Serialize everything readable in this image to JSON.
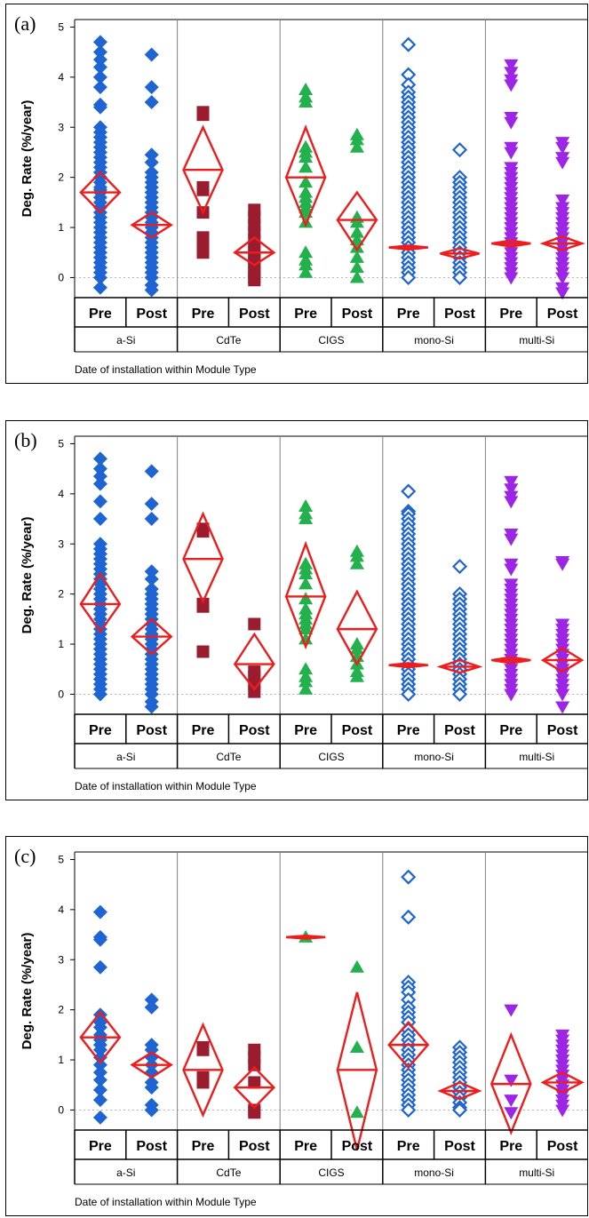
{
  "chart_data": [
    {
      "type": "scatter",
      "panel_label": "(a)",
      "ylabel": "Deg. Rate (%/year)",
      "xlabel": "Date of installation within Module Type",
      "yticks": [
        0,
        1,
        2,
        3,
        4,
        5
      ],
      "ylim": [
        -0.4,
        5.15
      ],
      "grid": false,
      "reference_line_y": 0,
      "module_types": [
        "a-Si",
        "CdTe",
        "CIGS",
        "mono-Si",
        "multi-Si"
      ],
      "periods": [
        "Pre",
        "Post"
      ],
      "groups": [
        {
          "module": "a-Si",
          "period": "Pre",
          "marker": "diamond",
          "color": "#1e64d2",
          "mean": 1.7,
          "ci": [
            1.3,
            2.1
          ],
          "values": [
            4.7,
            4.5,
            4.35,
            4.2,
            4.0,
            3.8,
            3.45,
            3.4,
            3.0,
            2.9,
            2.8,
            2.7,
            2.6,
            2.5,
            2.4,
            2.3,
            2.2,
            2.1,
            2.0,
            1.9,
            1.8,
            1.75,
            1.7,
            1.6,
            1.5,
            1.4,
            1.3,
            1.2,
            1.1,
            1.0,
            0.9,
            0.8,
            0.7,
            0.6,
            0.5,
            0.4,
            0.3,
            0.2,
            0.1,
            0.0,
            -0.2
          ]
        },
        {
          "module": "a-Si",
          "period": "Post",
          "marker": "diamond",
          "color": "#1e64d2",
          "mean": 1.05,
          "ci": [
            0.8,
            1.3
          ],
          "values": [
            4.45,
            3.8,
            3.5,
            2.45,
            2.3,
            2.1,
            2.0,
            1.9,
            1.8,
            1.7,
            1.6,
            1.5,
            1.4,
            1.3,
            1.2,
            1.1,
            1.0,
            0.9,
            0.8,
            0.7,
            0.6,
            0.5,
            0.4,
            0.3,
            0.2,
            0.1,
            0.0,
            -0.15,
            -0.25
          ]
        },
        {
          "module": "CdTe",
          "period": "Pre",
          "marker": "square",
          "color": "#9b1c2e",
          "mean": 2.15,
          "ci": [
            1.3,
            3.0
          ],
          "values": [
            3.3,
            3.25,
            1.8,
            1.75,
            1.3,
            0.8,
            0.6,
            0.5
          ]
        },
        {
          "module": "CdTe",
          "period": "Post",
          "marker": "square",
          "color": "#9b1c2e",
          "mean": 0.5,
          "ci": [
            0.25,
            0.8
          ],
          "values": [
            1.35,
            1.2,
            1.05,
            0.9,
            0.75,
            0.6,
            0.5,
            0.4,
            0.3,
            0.2,
            0.1,
            0.0,
            -0.05
          ]
        },
        {
          "module": "CIGS",
          "period": "Pre",
          "marker": "triangle-up",
          "color": "#22b14c",
          "mean": 2.0,
          "ci": [
            1.05,
            3.0
          ],
          "values": [
            3.75,
            3.6,
            3.5,
            2.6,
            2.5,
            2.4,
            2.2,
            1.9,
            1.7,
            1.6,
            1.5,
            1.4,
            1.3,
            1.1,
            0.5,
            0.35,
            0.25,
            0.1
          ]
        },
        {
          "module": "CIGS",
          "period": "Post",
          "marker": "triangle-up",
          "color": "#22b14c",
          "mean": 1.15,
          "ci": [
            0.55,
            1.7
          ],
          "values": [
            2.85,
            2.75,
            2.6,
            1.2,
            1.1,
            0.9,
            0.75,
            0.6,
            0.4,
            0.2,
            0.0
          ]
        },
        {
          "module": "mono-Si",
          "period": "Pre",
          "marker": "open-diamond",
          "color": "#1e64d2",
          "mean": 0.6,
          "ci": [
            0.56,
            0.64
          ],
          "values": [
            4.65,
            4.05,
            3.85,
            3.7,
            3.6,
            3.5,
            3.4,
            3.3,
            3.2,
            3.1,
            3.0,
            2.9,
            2.8,
            2.7,
            2.6,
            2.5,
            2.4,
            2.3,
            2.2,
            2.1,
            2.0,
            1.9,
            1.8,
            1.7,
            1.6,
            1.5,
            1.4,
            1.3,
            1.2,
            1.1,
            1.0,
            0.9,
            0.8,
            0.7,
            0.6,
            0.5,
            0.4,
            0.3,
            0.2,
            0.1,
            0.0
          ]
        },
        {
          "module": "mono-Si",
          "period": "Post",
          "marker": "open-diamond",
          "color": "#1e64d2",
          "mean": 0.48,
          "ci": [
            0.38,
            0.58
          ],
          "values": [
            2.55,
            2.0,
            1.9,
            1.8,
            1.7,
            1.6,
            1.5,
            1.4,
            1.3,
            1.2,
            1.1,
            1.0,
            0.9,
            0.8,
            0.7,
            0.6,
            0.5,
            0.4,
            0.3,
            0.2,
            0.1,
            0.0
          ]
        },
        {
          "module": "multi-Si",
          "period": "Pre",
          "marker": "triangle-down",
          "color": "#9d26e6",
          "mean": 0.68,
          "ci": [
            0.62,
            0.74
          ],
          "values": [
            4.25,
            4.1,
            3.95,
            3.85,
            3.2,
            3.1,
            2.6,
            2.5,
            2.2,
            2.1,
            2.0,
            1.9,
            1.8,
            1.7,
            1.6,
            1.5,
            1.4,
            1.3,
            1.2,
            1.1,
            1.0,
            0.9,
            0.8,
            0.7,
            0.6,
            0.5,
            0.4,
            0.3,
            0.2,
            0.1,
            0.0
          ]
        },
        {
          "module": "multi-Si",
          "period": "Post",
          "marker": "triangle-down",
          "color": "#9d26e6",
          "mean": 0.68,
          "ci": [
            0.55,
            0.82
          ],
          "values": [
            2.7,
            2.6,
            2.4,
            2.3,
            1.55,
            1.4,
            1.3,
            1.2,
            1.1,
            1.0,
            0.9,
            0.8,
            0.7,
            0.6,
            0.5,
            0.4,
            0.3,
            0.2,
            0.1,
            0.0,
            -0.2,
            -0.3
          ]
        }
      ]
    },
    {
      "type": "scatter",
      "panel_label": "(b)",
      "ylabel": "Deg. Rate (%/year)",
      "xlabel": "Date of installation within Module Type",
      "yticks": [
        0,
        1,
        2,
        3,
        4,
        5
      ],
      "ylim": [
        -0.4,
        5.15
      ],
      "grid": false,
      "reference_line_y": 0,
      "module_types": [
        "a-Si",
        "CdTe",
        "CIGS",
        "mono-Si",
        "multi-Si"
      ],
      "periods": [
        "Pre",
        "Post"
      ],
      "groups": [
        {
          "module": "a-Si",
          "period": "Pre",
          "marker": "diamond",
          "color": "#1e64d2",
          "mean": 1.8,
          "ci": [
            1.25,
            2.4
          ],
          "values": [
            4.7,
            4.5,
            4.35,
            4.2,
            3.85,
            3.5,
            3.0,
            2.9,
            2.8,
            2.7,
            2.6,
            2.5,
            2.4,
            2.3,
            2.2,
            2.1,
            2.0,
            1.9,
            1.8,
            1.7,
            1.6,
            1.5,
            1.4,
            1.3,
            1.2,
            1.1,
            1.0,
            0.9,
            0.8,
            0.7,
            0.6,
            0.5,
            0.4,
            0.3,
            0.2,
            0.1,
            0.0
          ]
        },
        {
          "module": "a-Si",
          "period": "Post",
          "marker": "diamond",
          "color": "#1e64d2",
          "mean": 1.15,
          "ci": [
            0.8,
            1.5
          ],
          "values": [
            4.45,
            3.8,
            3.5,
            2.45,
            2.3,
            2.1,
            2.0,
            1.9,
            1.8,
            1.7,
            1.6,
            1.5,
            1.4,
            1.3,
            1.2,
            1.1,
            1.0,
            0.9,
            0.8,
            0.7,
            0.6,
            0.5,
            0.4,
            0.3,
            0.2,
            0.1,
            0.0,
            -0.15,
            -0.25
          ]
        },
        {
          "module": "CdTe",
          "period": "Pre",
          "marker": "square",
          "color": "#9b1c2e",
          "mean": 2.7,
          "ci": [
            1.85,
            3.6
          ],
          "values": [
            3.3,
            3.25,
            1.8,
            1.75,
            0.85
          ]
        },
        {
          "module": "CdTe",
          "period": "Post",
          "marker": "square",
          "color": "#9b1c2e",
          "mean": 0.6,
          "ci": [
            0.1,
            1.2
          ],
          "values": [
            1.4,
            0.45,
            0.35,
            0.2,
            0.05
          ]
        },
        {
          "module": "CIGS",
          "period": "Pre",
          "marker": "triangle-up",
          "color": "#22b14c",
          "mean": 1.95,
          "ci": [
            0.95,
            3.0
          ],
          "values": [
            3.75,
            3.6,
            3.5,
            2.6,
            2.5,
            2.4,
            2.2,
            1.9,
            1.7,
            1.6,
            1.5,
            1.4,
            1.3,
            1.1,
            0.5,
            0.35,
            0.25,
            0.1
          ]
        },
        {
          "module": "CIGS",
          "period": "Post",
          "marker": "triangle-up",
          "color": "#22b14c",
          "mean": 1.3,
          "ci": [
            0.6,
            2.05
          ],
          "values": [
            2.85,
            2.75,
            2.6,
            1.0,
            0.9,
            0.75,
            0.6,
            0.45,
            0.35
          ]
        },
        {
          "module": "mono-Si",
          "period": "Pre",
          "marker": "open-diamond",
          "color": "#1e64d2",
          "mean": 0.58,
          "ci": [
            0.54,
            0.62
          ],
          "values": [
            4.05,
            3.65,
            3.6,
            3.5,
            3.4,
            3.3,
            3.2,
            3.1,
            3.0,
            2.9,
            2.8,
            2.7,
            2.6,
            2.5,
            2.4,
            2.3,
            2.2,
            2.1,
            2.0,
            1.9,
            1.8,
            1.7,
            1.6,
            1.5,
            1.4,
            1.3,
            1.2,
            1.1,
            1.0,
            0.9,
            0.8,
            0.7,
            0.6,
            0.5,
            0.4,
            0.3,
            0.2,
            0.1,
            0.0
          ]
        },
        {
          "module": "mono-Si",
          "period": "Post",
          "marker": "open-diamond",
          "color": "#1e64d2",
          "mean": 0.55,
          "ci": [
            0.43,
            0.68
          ],
          "values": [
            2.55,
            2.0,
            1.9,
            1.8,
            1.7,
            1.6,
            1.5,
            1.4,
            1.3,
            1.2,
            1.1,
            1.0,
            0.9,
            0.8,
            0.7,
            0.6,
            0.5,
            0.4,
            0.3,
            0.2,
            0.1,
            0.0
          ]
        },
        {
          "module": "multi-Si",
          "period": "Pre",
          "marker": "triangle-down",
          "color": "#9d26e6",
          "mean": 0.68,
          "ci": [
            0.62,
            0.74
          ],
          "values": [
            4.25,
            4.1,
            3.95,
            3.85,
            3.2,
            3.1,
            2.6,
            2.5,
            2.2,
            2.1,
            2.0,
            1.9,
            1.8,
            1.7,
            1.6,
            1.5,
            1.4,
            1.3,
            1.2,
            1.1,
            1.0,
            0.9,
            0.8,
            0.7,
            0.6,
            0.5,
            0.4,
            0.3,
            0.2,
            0.1,
            0.0
          ]
        },
        {
          "module": "multi-Si",
          "period": "Post",
          "marker": "triangle-down",
          "color": "#9d26e6",
          "mean": 0.68,
          "ci": [
            0.45,
            0.92
          ],
          "values": [
            2.65,
            2.6,
            1.4,
            1.3,
            1.2,
            1.1,
            1.0,
            0.9,
            0.8,
            0.7,
            0.6,
            0.5,
            0.4,
            0.3,
            0.2,
            0.1,
            0.0,
            -0.25
          ]
        }
      ]
    },
    {
      "type": "scatter",
      "panel_label": "(c)",
      "ylabel": "Deg. Rate (%/year)",
      "xlabel": "Date of installation within Module Type",
      "yticks": [
        0,
        1,
        2,
        3,
        4,
        5
      ],
      "ylim": [
        -0.4,
        5.15
      ],
      "grid": false,
      "reference_line_y": 0,
      "module_types": [
        "a-Si",
        "CdTe",
        "CIGS",
        "mono-Si",
        "multi-Si"
      ],
      "periods": [
        "Pre",
        "Post"
      ],
      "groups": [
        {
          "module": "a-Si",
          "period": "Pre",
          "marker": "diamond",
          "color": "#1e64d2",
          "mean": 1.45,
          "ci": [
            0.95,
            1.95
          ],
          "values": [
            3.95,
            3.45,
            3.4,
            2.85,
            1.9,
            1.75,
            1.65,
            1.5,
            1.4,
            1.3,
            1.2,
            1.05,
            0.9,
            0.75,
            0.6,
            0.4,
            0.2,
            -0.15
          ]
        },
        {
          "module": "a-Si",
          "period": "Post",
          "marker": "diamond",
          "color": "#1e64d2",
          "mean": 0.9,
          "ci": [
            0.65,
            1.15
          ],
          "values": [
            2.2,
            2.05,
            1.3,
            1.2,
            1.05,
            0.9,
            0.75,
            0.55,
            0.45,
            0.1,
            0.0
          ]
        },
        {
          "module": "CdTe",
          "period": "Pre",
          "marker": "square",
          "color": "#9b1c2e",
          "mean": 0.8,
          "ci": [
            -0.1,
            1.7
          ],
          "values": [
            1.25,
            1.2,
            0.65,
            0.55
          ]
        },
        {
          "module": "CdTe",
          "period": "Post",
          "marker": "square",
          "color": "#9b1c2e",
          "mean": 0.45,
          "ci": [
            0.05,
            0.85
          ],
          "values": [
            1.2,
            1.05,
            0.9,
            0.55,
            0.0,
            -0.05
          ]
        },
        {
          "module": "CIGS",
          "period": "Pre",
          "marker": "triangle-up",
          "color": "#22b14c",
          "mean": 3.45,
          "ci": [
            3.42,
            3.48
          ],
          "values": [
            3.45
          ]
        },
        {
          "module": "CIGS",
          "period": "Post",
          "marker": "triangle-up",
          "color": "#22b14c",
          "mean": 0.8,
          "ci": [
            -0.8,
            2.35
          ],
          "values": [
            2.85,
            1.25,
            -0.05
          ]
        },
        {
          "module": "mono-Si",
          "period": "Pre",
          "marker": "open-diamond",
          "color": "#1e64d2",
          "mean": 1.3,
          "ci": [
            0.85,
            1.75
          ],
          "values": [
            4.65,
            3.85,
            2.55,
            2.45,
            2.35,
            2.2,
            2.05,
            1.95,
            1.85,
            1.75,
            1.6,
            1.5,
            1.4,
            1.3,
            1.2,
            1.1,
            1.0,
            0.9,
            0.8,
            0.7,
            0.6,
            0.5,
            0.4,
            0.3,
            0.2,
            0.1,
            0.0
          ]
        },
        {
          "module": "mono-Si",
          "period": "Post",
          "marker": "open-diamond",
          "color": "#1e64d2",
          "mean": 0.38,
          "ci": [
            0.22,
            0.55
          ],
          "values": [
            1.25,
            1.15,
            1.05,
            0.95,
            0.85,
            0.75,
            0.65,
            0.55,
            0.45,
            0.35,
            0.25,
            0.15,
            0.05,
            0.0
          ]
        },
        {
          "module": "multi-Si",
          "period": "Pre",
          "marker": "triangle-down",
          "color": "#9d26e6",
          "mean": 0.52,
          "ci": [
            -0.45,
            1.5
          ],
          "values": [
            2.0,
            0.6,
            0.2,
            -0.05
          ]
        },
        {
          "module": "multi-Si",
          "period": "Post",
          "marker": "triangle-down",
          "color": "#9d26e6",
          "mean": 0.55,
          "ci": [
            0.35,
            0.75
          ],
          "values": [
            1.5,
            1.4,
            1.3,
            1.2,
            1.1,
            1.0,
            0.9,
            0.8,
            0.7,
            0.6,
            0.5,
            0.4,
            0.3,
            0.2,
            0.1,
            0.0
          ]
        }
      ]
    }
  ],
  "colors": {
    "ci_diamond": "#ee1c1c",
    "reference_line": "#b4b4b4",
    "frame": "#000000",
    "separator": "#7f7f7f"
  }
}
